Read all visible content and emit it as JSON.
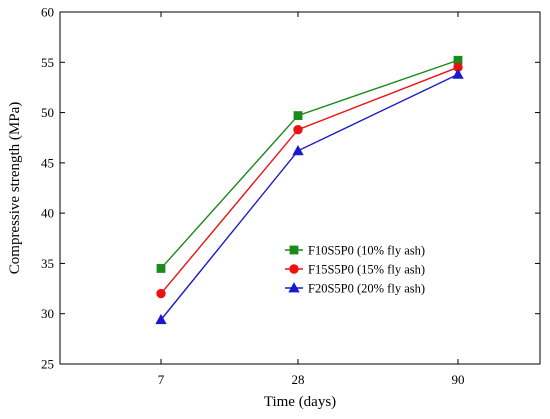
{
  "chart_data": {
    "type": "line",
    "xlabel": "Time (days)",
    "ylabel": "Compressive strength (MPa)",
    "categories": [
      "7",
      "28",
      "90"
    ],
    "ylim": [
      25,
      60
    ],
    "yticks": [
      "25",
      "30",
      "35",
      "40",
      "45",
      "50",
      "55",
      "60"
    ],
    "grid": false,
    "legend_position": "center-right",
    "series": [
      {
        "name": "F10S5P0 (10% fly ash)",
        "values": [
          34.5,
          49.7,
          55.2
        ],
        "color": "#1a8a1a",
        "marker": "square"
      },
      {
        "name": "F15S5P0 (15% fly ash)",
        "values": [
          32.0,
          48.3,
          54.5
        ],
        "color": "#ee1111",
        "marker": "circle"
      },
      {
        "name": "F20S5P0 (20% fly ash)",
        "values": [
          29.4,
          46.2,
          53.8
        ],
        "color": "#1a1acc",
        "marker": "triangle"
      }
    ]
  }
}
